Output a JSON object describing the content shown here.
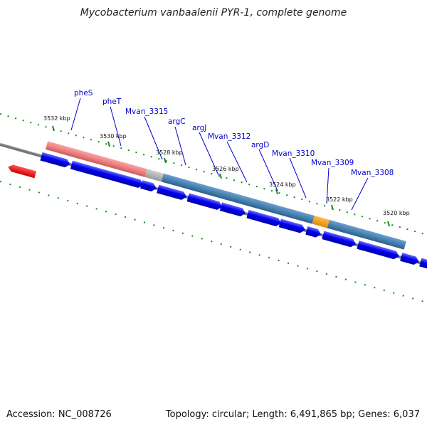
{
  "title": "Mycobacterium vanbaalenii PYR-1, complete genome",
  "footer": {
    "accession": "Accession: NC_008726",
    "summary": "Topology: circular; Length: 6,491,865 bp; Genes: 6,037"
  },
  "kbp_markers": [
    "3532 kbp",
    "3530 kbp",
    "3528 kbp",
    "3526 kbp",
    "3524 kbp",
    "3522 kbp",
    "3520 kbp"
  ],
  "gene_labels": [
    "pheS",
    "pheT",
    "Mvan_3315",
    "argC",
    "argJ",
    "Mvan_3312",
    "argD",
    "Mvan_3310",
    "Mvan_3309",
    "Mvan_3308"
  ],
  "colors": {
    "cds": "#0000ee",
    "cds_light": "#5555ff",
    "rrna_pink": "#ff33aa",
    "red_gene": "#ee0000",
    "segment_salmon": "#f08080",
    "segment_gray": "#b8b8b8",
    "segment_steelblue": "#4682b4",
    "segment_orange": "#ff9900",
    "backbone": "#777777",
    "ticks": "#1a8a1a"
  }
}
